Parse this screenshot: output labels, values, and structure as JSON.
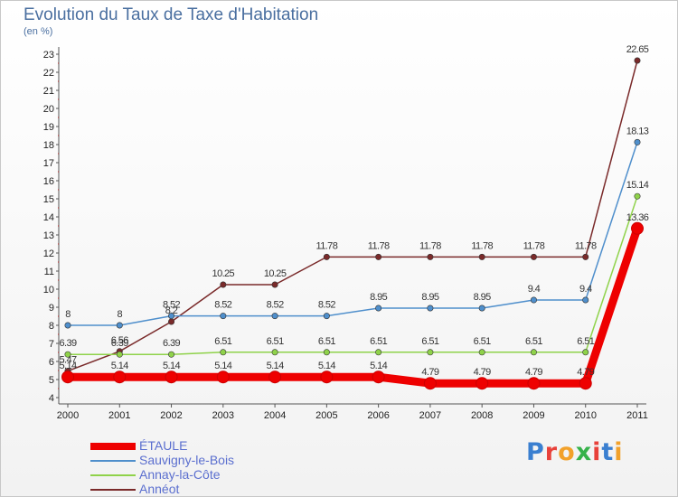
{
  "header": {
    "title": "Evolution du Taux de Taxe d'Habitation",
    "unit": "(en %)"
  },
  "logo": {
    "text": "Proxiti",
    "colors": [
      "#3a7fd0",
      "#e8413a",
      "#f2a12a",
      "#36b24a",
      "#e8413a",
      "#3a7fd0",
      "#f2a12a"
    ]
  },
  "chart_data": {
    "type": "line",
    "title": "Evolution du Taux de Taxe d'Habitation",
    "ylabel": "(en %)",
    "xlabel": "",
    "x": [
      "2000",
      "2001",
      "2002",
      "2003",
      "2004",
      "2005",
      "2006",
      "2007",
      "2008",
      "2009",
      "2010",
      "2011"
    ],
    "ylim": [
      4,
      23
    ],
    "yticks": [
      4,
      5,
      6,
      7,
      8,
      9,
      10,
      11,
      12,
      13,
      14,
      15,
      16,
      17,
      18,
      19,
      20,
      21,
      22,
      23
    ],
    "grid": false,
    "legend": "bottom-left",
    "series": [
      {
        "name": "Annéot",
        "color": "#7a2a2a",
        "values": [
          5.47,
          6.56,
          8.2,
          10.25,
          10.25,
          11.78,
          11.78,
          11.78,
          11.78,
          11.78,
          11.78,
          22.65
        ],
        "labels": [
          "5.47",
          "6.56",
          "8.2",
          "10.25",
          "10.25",
          "11.78",
          "11.78",
          "11.78",
          "11.78",
          "11.78",
          "11.78",
          "22.65"
        ]
      },
      {
        "name": "Sauvigny-le-Bois",
        "color": "#4f8fcc",
        "values": [
          8,
          8,
          8.52,
          8.52,
          8.52,
          8.52,
          8.95,
          8.95,
          8.95,
          9.4,
          9.4,
          18.13
        ],
        "labels": [
          "8",
          "8",
          "8.52",
          "8.52",
          "8.52",
          "8.52",
          "8.95",
          "8.95",
          "8.95",
          "9.4",
          "9.4",
          "18.13"
        ]
      },
      {
        "name": "Annay-la-Côte",
        "color": "#8fd24a",
        "values": [
          6.39,
          6.39,
          6.39,
          6.51,
          6.51,
          6.51,
          6.51,
          6.51,
          6.51,
          6.51,
          6.51,
          15.14
        ],
        "labels": [
          "6.39",
          "6.39",
          "6.39",
          "6.51",
          "6.51",
          "6.51",
          "6.51",
          "6.51",
          "6.51",
          "6.51",
          "6.51",
          "15.14"
        ]
      },
      {
        "name": "ÉTAULE",
        "color": "#ee0000",
        "values": [
          5.14,
          5.14,
          5.14,
          5.14,
          5.14,
          5.14,
          5.14,
          4.79,
          4.79,
          4.79,
          4.79,
          13.36
        ],
        "labels": [
          "5.14",
          "5.14",
          "5.14",
          "5.14",
          "5.14",
          "5.14",
          "5.14",
          "4.79",
          "4.79",
          "4.79",
          "4.79",
          "13.36"
        ]
      }
    ],
    "legend_order": [
      "ÉTAULE",
      "Sauvigny-le-Bois",
      "Annay-la-Côte",
      "Annéot"
    ]
  }
}
